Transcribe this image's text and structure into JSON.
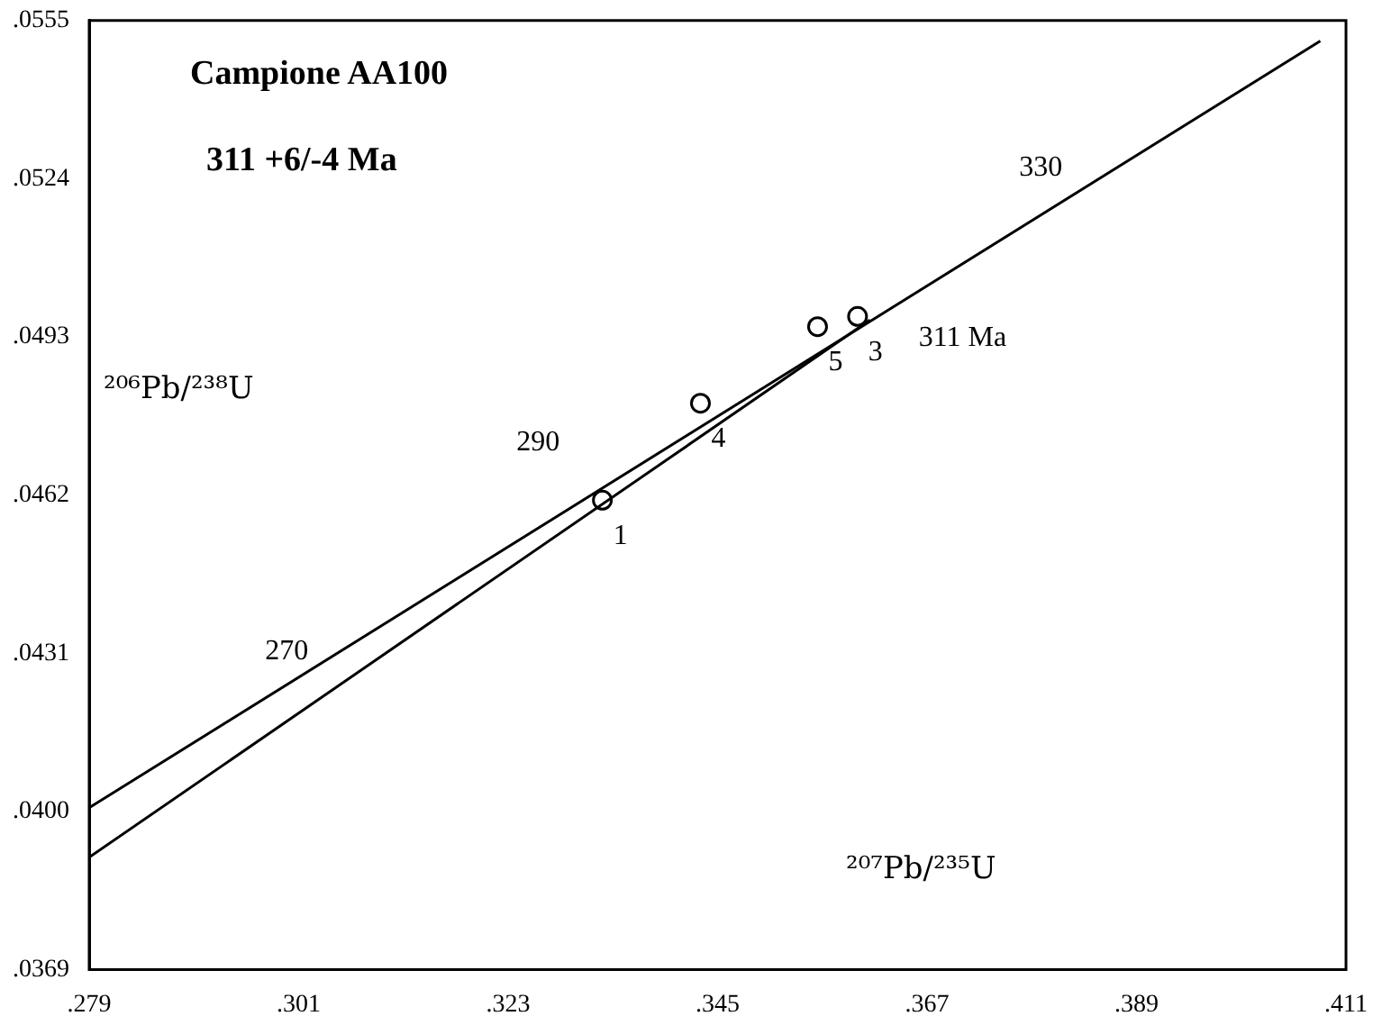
{
  "chart_data": {
    "type": "line",
    "title": "Campione AA100",
    "subtitle": "311 +6/-4 Ma",
    "xlabel": "²⁰⁷Pb/²³⁵U",
    "ylabel": "²⁰⁶Pb/²³⁸U",
    "xlim": [
      0.279,
      0.411
    ],
    "xticks": [
      {
        "value": 0.279,
        "label": ".279"
      },
      {
        "value": 0.301,
        "label": ".301"
      },
      {
        "value": 0.323,
        "label": ".323"
      },
      {
        "value": 0.345,
        "label": ".345"
      },
      {
        "value": 0.367,
        "label": ".367"
      },
      {
        "value": 0.389,
        "label": ".389"
      },
      {
        "value": 0.411,
        "label": ".411"
      }
    ],
    "ylim": [
      0.0369,
      0.0555
    ],
    "yticks": [
      {
        "value": 0.0369,
        "label": ".0369"
      },
      {
        "value": 0.04,
        "label": ".0400"
      },
      {
        "value": 0.0431,
        "label": ".0431"
      },
      {
        "value": 0.0462,
        "label": ".0462"
      },
      {
        "value": 0.0493,
        "label": ".0493"
      },
      {
        "value": 0.0524,
        "label": ".0524"
      },
      {
        "value": 0.0555,
        "label": ".0555"
      }
    ],
    "grid": false,
    "legend": false,
    "series": [
      {
        "color": "#000000",
        "marker": "none",
        "x": [
          0.279,
          0.4083
        ],
        "values": [
          0.04007,
          0.0551
        ]
      },
      {
        "color": "#000000",
        "marker": "none",
        "x": [
          0.279,
          0.361
        ],
        "values": [
          0.0391,
          0.04963
        ]
      },
      {
        "type": "scatter",
        "name": "1",
        "color": "#000000",
        "marker": "circle",
        "x": [
          0.3329
        ],
        "values": [
          0.0461
        ]
      },
      {
        "type": "scatter",
        "name": "4",
        "color": "#000000",
        "marker": "circle",
        "x": [
          0.3432
        ],
        "values": [
          0.048
        ]
      },
      {
        "type": "scatter",
        "name": "5",
        "color": "#000000",
        "marker": "circle",
        "x": [
          0.3555
        ],
        "values": [
          0.0495
        ]
      },
      {
        "type": "scatter",
        "name": "3",
        "color": "#000000",
        "marker": "circle",
        "x": [
          0.3597
        ],
        "values": [
          0.0497
        ]
      }
    ],
    "annotations": [
      "270",
      "290",
      "311 Ma",
      "330"
    ]
  }
}
